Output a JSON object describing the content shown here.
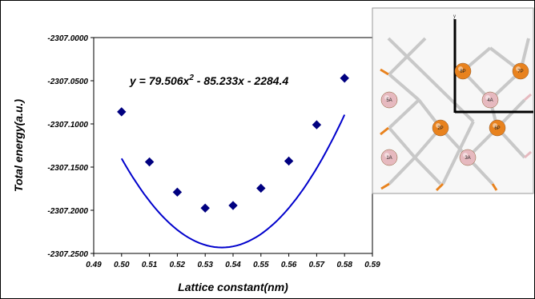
{
  "chart_data": {
    "type": "scatter",
    "x": [
      0.5,
      0.51,
      0.52,
      0.53,
      0.54,
      0.55,
      0.56,
      0.57,
      0.58
    ],
    "y": [
      -2307.086,
      -2307.144,
      -2307.179,
      -2307.1975,
      -2307.1945,
      -2307.1745,
      -2307.143,
      -2307.101,
      -2307.047
    ],
    "fit": {
      "type": "quadratic",
      "a": 79.506,
      "b": -85.233,
      "c": -2284.4
    },
    "equation_text": "y = 79.506x",
    "equation_exp": "2",
    "equation_rest": " - 85.233x - 2284.4",
    "xlabel": "Lattice constant(nm)",
    "ylabel": "Total energy(a.u.)",
    "xlim": [
      0.49,
      0.59
    ],
    "ylim": [
      -2307.25,
      -2307.0
    ],
    "xticks": [
      "0.49",
      "0.50",
      "0.51",
      "0.52",
      "0.53",
      "0.54",
      "0.55",
      "0.56",
      "0.57",
      "0.58",
      "0.59"
    ],
    "yticks": [
      "-2307.0000",
      "-2307.0500",
      "-2307.1000",
      "-2307.1500",
      "-2307.2000",
      "-2307.2500"
    ],
    "marker_color": "#000080",
    "fit_color": "#0000cc",
    "grid": false
  },
  "inset": {
    "axis_label": "y",
    "atom_labels": [
      "8P",
      "7P",
      "5A",
      "4A",
      "2P",
      "6P",
      "1A",
      "3A"
    ],
    "orange": "#e8821e",
    "pink": "#e6b9bf"
  }
}
